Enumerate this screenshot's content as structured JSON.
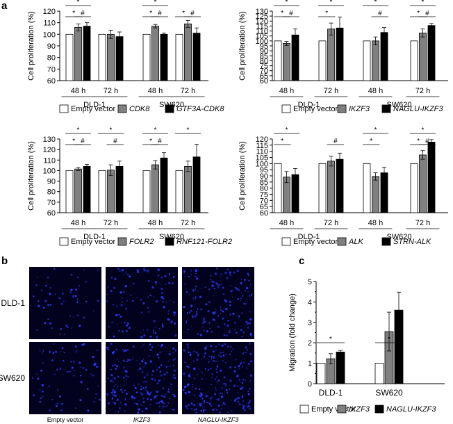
{
  "panel_labels": {
    "a": "a",
    "b": "b",
    "c": "c"
  },
  "chart_data": [
    {
      "id": "a1",
      "type": "bar",
      "ylabel": "Cell proliferation (%)",
      "ylim": [
        60,
        120
      ],
      "yticks": [
        60,
        70,
        80,
        90,
        100,
        110,
        120
      ],
      "groups": [
        {
          "name": "DLD-1",
          "times": [
            "48 h",
            "72 h"
          ]
        },
        {
          "name": "SW620",
          "times": [
            "48 h",
            "72 h"
          ]
        }
      ],
      "series": [
        {
          "name": "Empty vector",
          "italic": false,
          "color": "#ffffff",
          "values": [
            100,
            100,
            100,
            100
          ],
          "errors": [
            0,
            0,
            0,
            0
          ]
        },
        {
          "name": "CDK8",
          "italic": true,
          "color": "#808080",
          "values": [
            106,
            100,
            107,
            109
          ],
          "errors": [
            3,
            3.5,
            1.5,
            3
          ]
        },
        {
          "name": "GTF3A-CDK8",
          "italic": true,
          "color": "#000000",
          "values": [
            107,
            98,
            100,
            101
          ],
          "errors": [
            3,
            4,
            1,
            4.5
          ]
        }
      ],
      "annotations": [
        {
          "cluster": 0,
          "from": 0,
          "to": 1,
          "label": "*",
          "level": 0
        },
        {
          "cluster": 0,
          "from": 1,
          "to": 2,
          "label": "#",
          "level": 0
        },
        {
          "cluster": 0,
          "from": 0,
          "to": 2,
          "label": "*",
          "level": 1
        },
        {
          "cluster": 2,
          "from": 0,
          "to": 1,
          "label": "*",
          "level": 0
        },
        {
          "cluster": 2,
          "from": 1,
          "to": 2,
          "label": "#",
          "level": 0
        },
        {
          "cluster": 2,
          "from": 0,
          "to": 2,
          "label": "*",
          "level": 1
        },
        {
          "cluster": 3,
          "from": 0,
          "to": 1,
          "label": "*",
          "level": 0
        },
        {
          "cluster": 3,
          "from": 1,
          "to": 2,
          "label": "#",
          "level": 0
        }
      ]
    },
    {
      "id": "a2",
      "type": "bar",
      "ylabel": "Cell proliferation (%)",
      "ylim": [
        60,
        130
      ],
      "yticks": [
        60,
        65,
        70,
        75,
        80,
        85,
        90,
        95,
        100,
        105,
        110,
        115,
        120,
        125,
        130
      ],
      "groups": [
        {
          "name": "DLD-1",
          "times": [
            "48 h",
            "72 h"
          ]
        },
        {
          "name": "SW620",
          "times": [
            "48 h",
            "72 h"
          ]
        }
      ],
      "series": [
        {
          "name": "Empty vector",
          "italic": false,
          "color": "#ffffff",
          "values": [
            100,
            100,
            100,
            100
          ],
          "errors": [
            0,
            0,
            0,
            0
          ]
        },
        {
          "name": "IKZF3",
          "italic": true,
          "color": "#808080",
          "values": [
            97.5,
            112,
            100,
            108
          ],
          "errors": [
            2,
            6,
            4,
            4
          ]
        },
        {
          "name": "NAGLU-IKZF3",
          "italic": true,
          "color": "#000000",
          "values": [
            106,
            113,
            108.5,
            115.5
          ],
          "errors": [
            6,
            11,
            5,
            2
          ]
        }
      ],
      "annotations": [
        {
          "cluster": 0,
          "from": 0,
          "to": 1,
          "label": "*",
          "level": 0
        },
        {
          "cluster": 0,
          "from": 1,
          "to": 2,
          "label": "#",
          "level": 0
        },
        {
          "cluster": 0,
          "from": 0,
          "to": 2,
          "label": "*",
          "level": 1
        },
        {
          "cluster": 1,
          "from": 0,
          "to": 1,
          "label": "*",
          "level": 0
        },
        {
          "cluster": 1,
          "from": 0,
          "to": 2,
          "label": "*",
          "level": 1
        },
        {
          "cluster": 2,
          "from": 1,
          "to": 2,
          "label": "#",
          "level": 0
        },
        {
          "cluster": 2,
          "from": 0,
          "to": 2,
          "label": "*",
          "level": 1
        },
        {
          "cluster": 3,
          "from": 0,
          "to": 1,
          "label": "*",
          "level": 0
        },
        {
          "cluster": 3,
          "from": 1,
          "to": 2,
          "label": "#",
          "level": 0
        },
        {
          "cluster": 3,
          "from": 0,
          "to": 2,
          "label": "*",
          "level": 1
        }
      ]
    },
    {
      "id": "a3",
      "type": "bar",
      "ylabel": "Cell proliferation (%)",
      "ylim": [
        60,
        130
      ],
      "yticks": [
        60,
        70,
        80,
        90,
        100,
        110,
        120,
        130
      ],
      "groups": [
        {
          "name": "DLD-1",
          "times": [
            "48 h",
            "72 h"
          ]
        },
        {
          "name": "SW620",
          "times": [
            "48 h",
            "72 h"
          ]
        }
      ],
      "series": [
        {
          "name": "Empty vector",
          "italic": false,
          "color": "#ffffff",
          "values": [
            100,
            100,
            100,
            100
          ],
          "errors": [
            0,
            0,
            0,
            0
          ]
        },
        {
          "name": "FOLR2",
          "italic": true,
          "color": "#808080",
          "values": [
            101.5,
            100.5,
            105.5,
            104
          ],
          "errors": [
            1.5,
            5,
            4,
            5
          ]
        },
        {
          "name": "RNF121-FOLR2",
          "italic": true,
          "color": "#000000",
          "values": [
            104,
            104,
            112,
            113
          ],
          "errors": [
            2,
            5,
            5,
            12
          ]
        }
      ],
      "annotations": [
        {
          "cluster": 0,
          "from": 0,
          "to": 1,
          "label": "*",
          "level": 0
        },
        {
          "cluster": 0,
          "from": 1,
          "to": 2,
          "label": "#",
          "level": 0
        },
        {
          "cluster": 0,
          "from": 0,
          "to": 2,
          "label": "*",
          "level": 1
        },
        {
          "cluster": 1,
          "from": 1,
          "to": 2,
          "label": "#",
          "level": 0
        },
        {
          "cluster": 1,
          "from": 0,
          "to": 2,
          "label": "*",
          "level": 1
        },
        {
          "cluster": 2,
          "from": 0,
          "to": 1,
          "label": "*",
          "level": 0
        },
        {
          "cluster": 2,
          "from": 1,
          "to": 2,
          "label": "#",
          "level": 0
        },
        {
          "cluster": 2,
          "from": 0,
          "to": 2,
          "label": "*",
          "level": 1
        },
        {
          "cluster": 3,
          "from": 0,
          "to": 2,
          "label": "*",
          "level": 1
        }
      ]
    },
    {
      "id": "a4",
      "type": "bar",
      "ylabel": "Cell proliferation (%)",
      "ylim": [
        60,
        120
      ],
      "yticks": [
        60,
        65,
        70,
        75,
        80,
        85,
        90,
        95,
        100,
        105,
        110,
        115,
        120
      ],
      "groups": [
        {
          "name": "DLD-1",
          "times": [
            "48 h",
            "72 h"
          ]
        },
        {
          "name": "SW620",
          "times": [
            "48 h",
            "72 h"
          ]
        }
      ],
      "series": [
        {
          "name": "Empty vector",
          "italic": false,
          "color": "#ffffff",
          "values": [
            100,
            100,
            100,
            100
          ],
          "errors": [
            0,
            0,
            0,
            0
          ]
        },
        {
          "name": "ALK",
          "italic": true,
          "color": "#808080",
          "values": [
            89,
            102,
            89.5,
            107
          ],
          "errors": [
            4.5,
            4,
            3,
            3.5
          ]
        },
        {
          "name": "STRN-ALK",
          "italic": true,
          "color": "#000000",
          "values": [
            91,
            103.5,
            92.5,
            117.5
          ],
          "errors": [
            5,
            5,
            4.5,
            2
          ]
        }
      ],
      "annotations": [
        {
          "cluster": 0,
          "from": 0,
          "to": 1,
          "label": "*",
          "level": 0
        },
        {
          "cluster": 0,
          "from": 0,
          "to": 2,
          "label": "*",
          "level": 1
        },
        {
          "cluster": 1,
          "from": 1,
          "to": 2,
          "label": "#",
          "level": 0
        },
        {
          "cluster": 2,
          "from": 0,
          "to": 1,
          "label": "*",
          "level": 0
        },
        {
          "cluster": 2,
          "from": 0,
          "to": 2,
          "label": "*",
          "level": 1
        },
        {
          "cluster": 3,
          "from": 0,
          "to": 1,
          "label": "*",
          "level": 0
        },
        {
          "cluster": 3,
          "from": 1,
          "to": 2,
          "label": "#",
          "level": 0
        },
        {
          "cluster": 3,
          "from": 0,
          "to": 2,
          "label": "*",
          "level": 1
        }
      ]
    },
    {
      "id": "c",
      "type": "bar",
      "ylabel": "Migration (fold change)",
      "ylim": [
        0,
        5
      ],
      "yticks": [
        0,
        0.5,
        1,
        1.5,
        2,
        2.5,
        3,
        3.5,
        4,
        4.5,
        5
      ],
      "ytick_labels": {
        "0": "0",
        "1": "1",
        "2": "2",
        "3": "3",
        "4": "4",
        "5": "5"
      },
      "groups": [
        {
          "name": "DLD-1",
          "times": [
            ""
          ]
        },
        {
          "name": "SW620",
          "times": [
            ""
          ]
        }
      ],
      "series": [
        {
          "name": "Empty vector",
          "italic": false,
          "color": "#ffffff",
          "values": [
            1,
            1
          ],
          "errors": [
            0,
            0
          ]
        },
        {
          "name": "IKZF3",
          "italic": true,
          "color": "#808080",
          "values": [
            1.22,
            2.55
          ],
          "errors": [
            0.25,
            0.95
          ]
        },
        {
          "name": "NAGLU-IKZF3",
          "italic": true,
          "color": "#000000",
          "values": [
            1.55,
            3.6
          ],
          "errors": [
            0.08,
            0.88
          ]
        }
      ],
      "annotations": [
        {
          "cluster": 0,
          "from": 0,
          "to": 2,
          "label": "*",
          "level": 0
        },
        {
          "cluster": 1,
          "from": 0,
          "to": 2,
          "label": "*",
          "level": 0
        }
      ]
    }
  ],
  "micrographs": {
    "row_labels": [
      "DLD-1",
      "SW620"
    ],
    "column_labels": [
      "Empty vector",
      "IKZF3",
      "NAGLU-IKZF3"
    ],
    "column_italic": [
      false,
      true,
      true
    ],
    "background": "#02021e",
    "cell_color": "#2a3cff",
    "cell_density": [
      [
        0.25,
        0.55,
        0.8
      ],
      [
        0.35,
        0.95,
        1.0
      ]
    ]
  }
}
